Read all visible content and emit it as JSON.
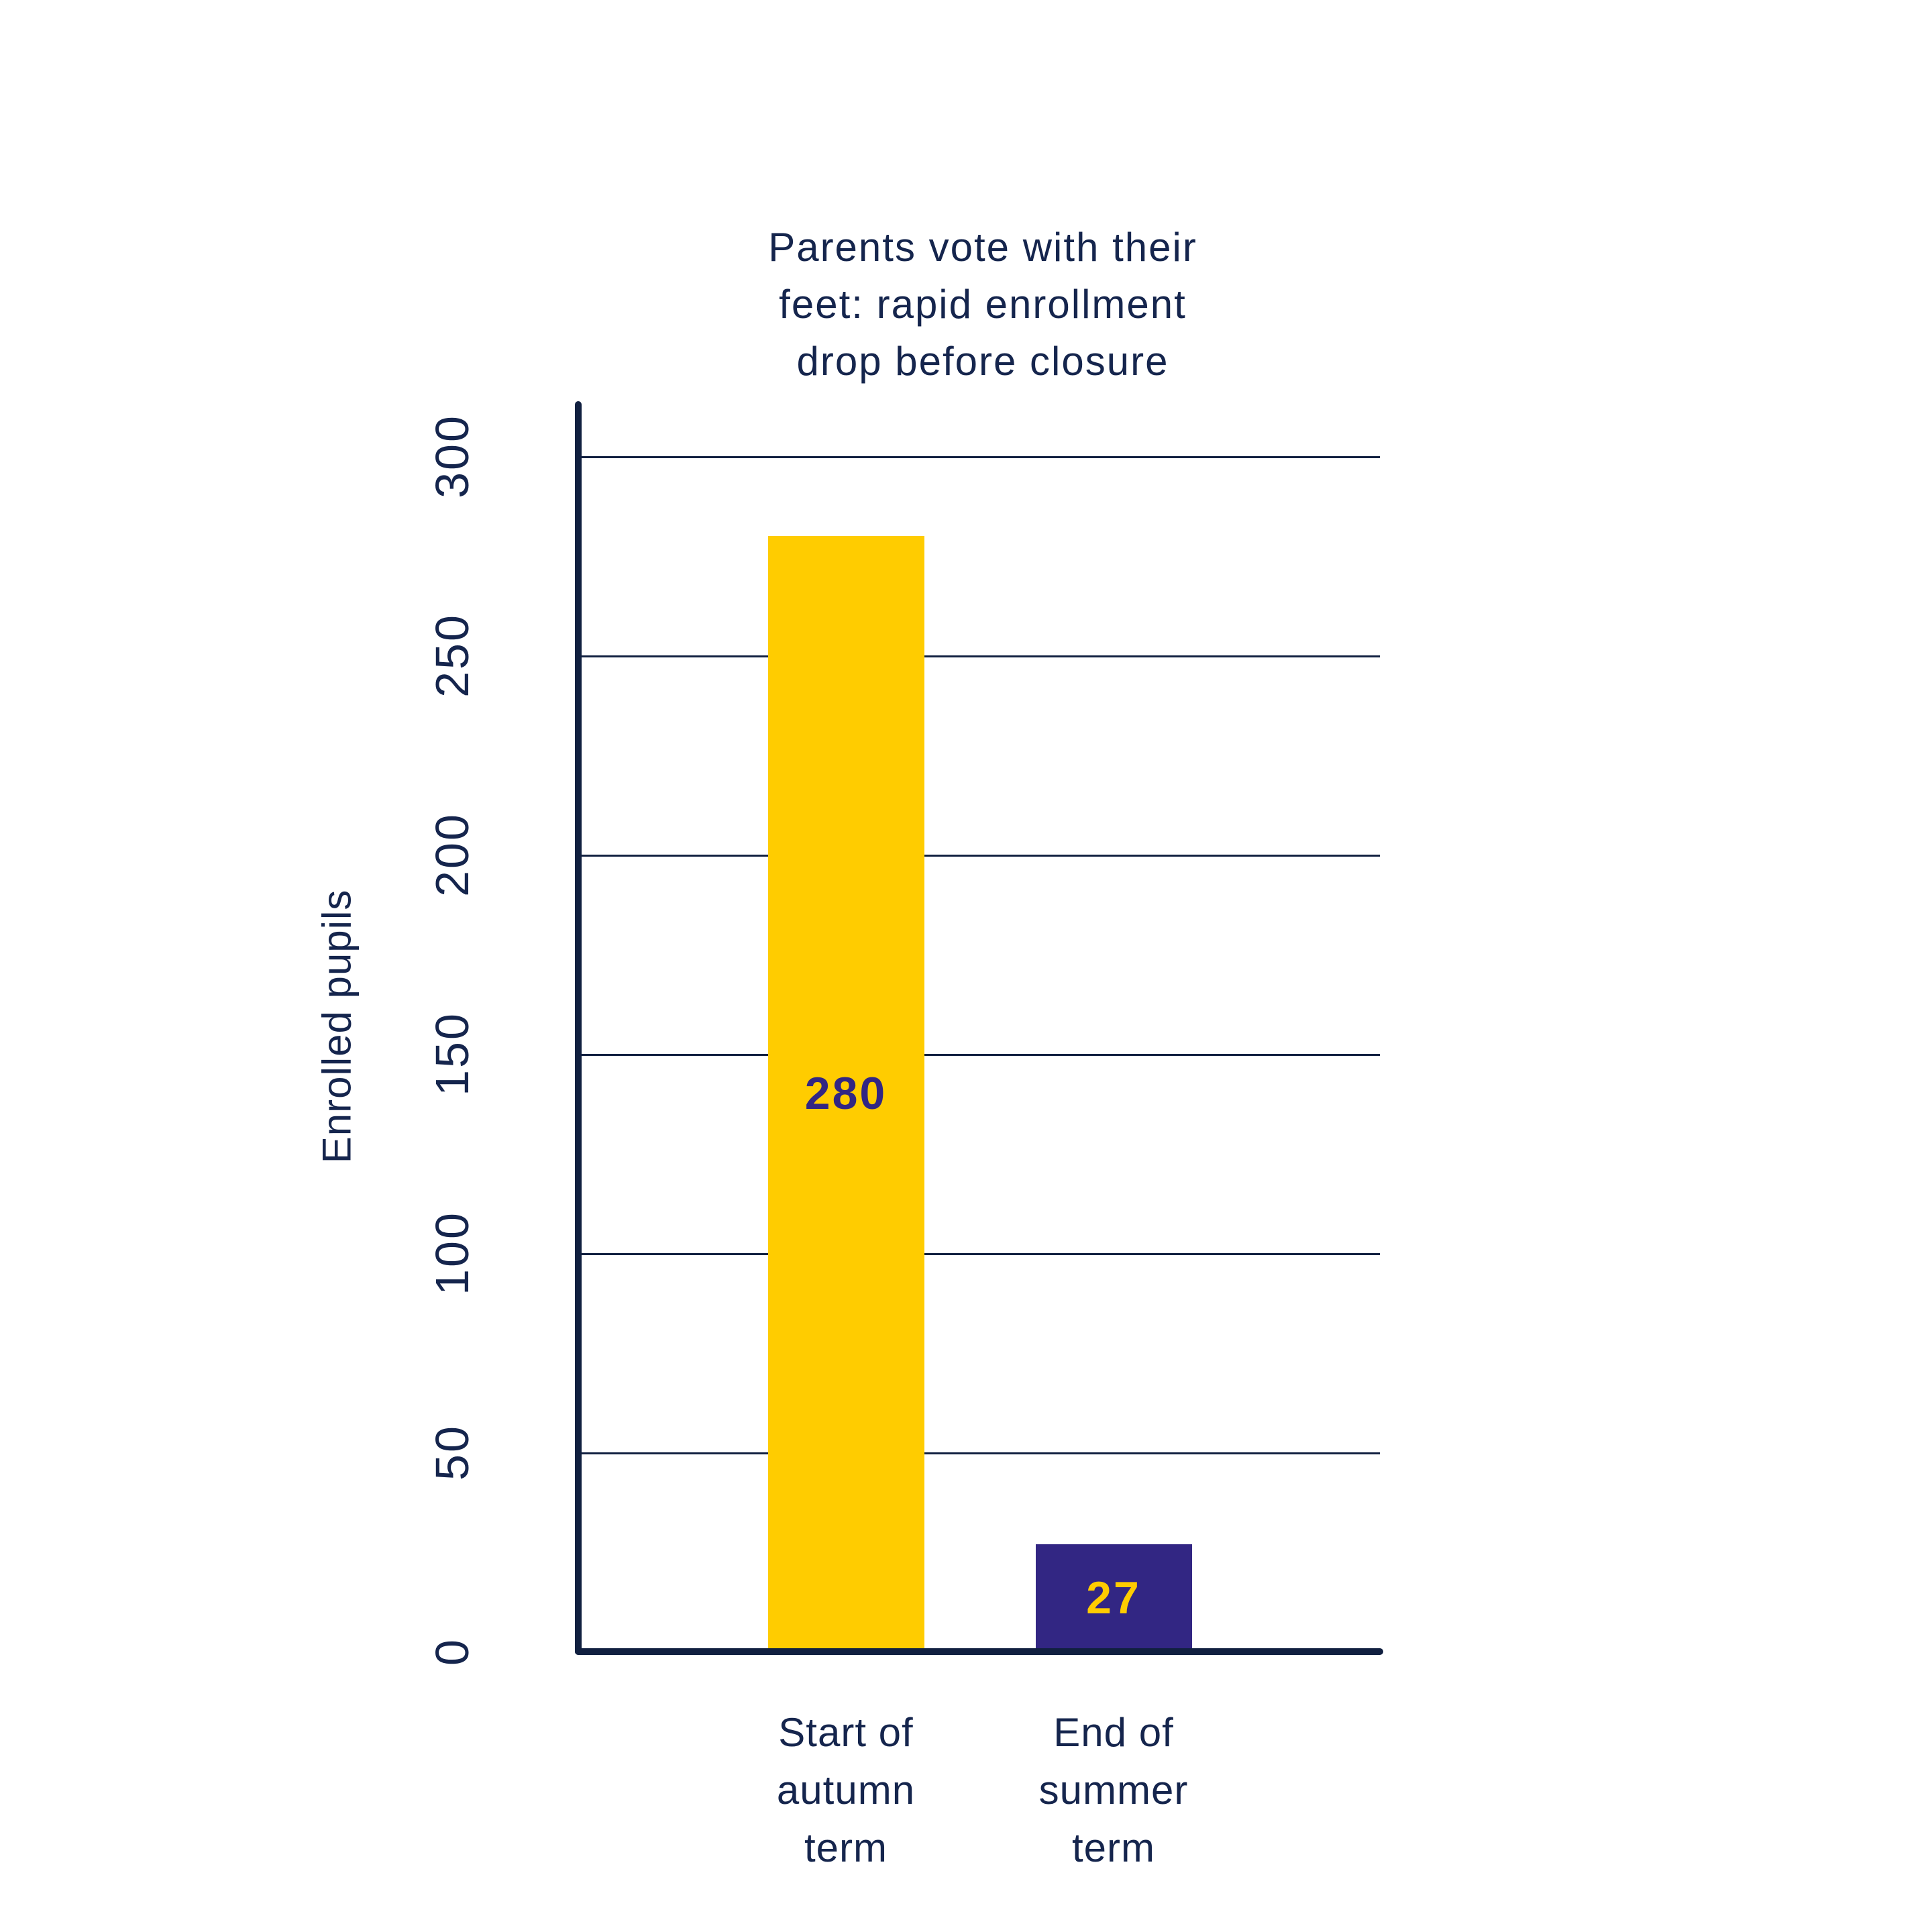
{
  "chart_data": {
    "type": "bar",
    "title": "Parents vote with their\nfeet: rapid enrollment\ndrop before closure",
    "ylabel": "Enrolled pupils",
    "xlabel": "",
    "categories": [
      "Start of\nautumn\nterm",
      "End of\nsummer\nterm"
    ],
    "values": [
      280,
      27
    ],
    "value_labels": [
      "280",
      "27"
    ],
    "bar_colors": [
      "#FFCC00",
      "#322683"
    ],
    "value_label_colors": [
      "#322683",
      "#FFCC00"
    ],
    "yticks": [
      0,
      50,
      100,
      150,
      200,
      250,
      300
    ],
    "ytick_labels": [
      "0",
      "50",
      "100",
      "150",
      "200",
      "250",
      "300"
    ],
    "ylim": [
      0,
      312
    ],
    "grid": true,
    "grid_axis": "y",
    "legend": "none",
    "tick_label_rotation_deg": 90,
    "colors": {
      "axis_navy": "#112040",
      "text_navy": "#15254d",
      "bar_yellow": "#FFCC00",
      "bar_purple": "#322683"
    }
  }
}
